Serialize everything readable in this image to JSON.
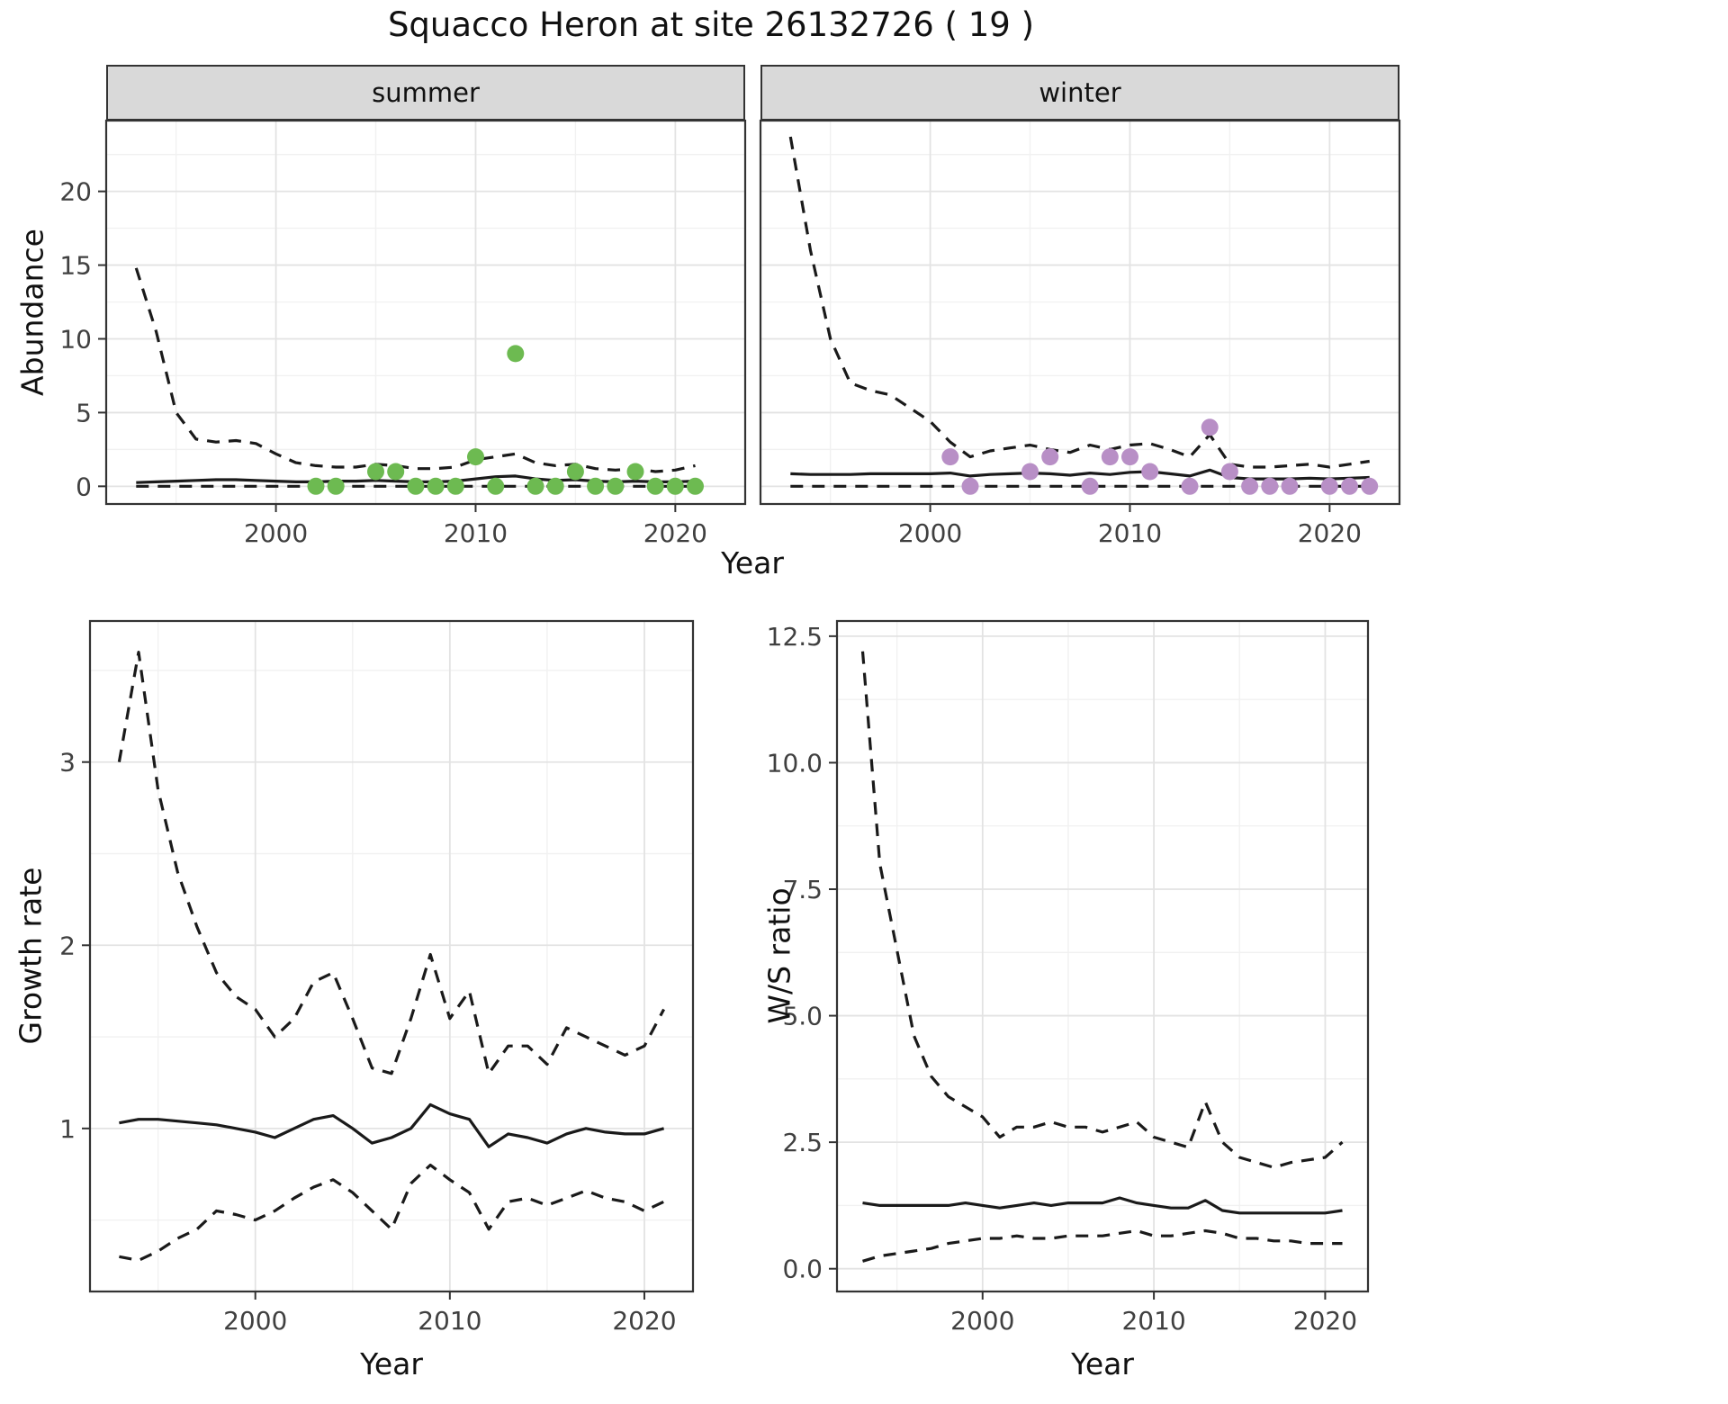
{
  "title": "Squacco Heron at site 26132726 ( 19 )",
  "theme": {
    "grid_major": "#e3e3e3",
    "grid_minor": "#f1f1f1",
    "panel_border": "#333333",
    "strip_bg": "#d9d9d9",
    "line_color": "#1a1a1a",
    "summer_point_color": "#6dba51",
    "winter_point_color": "#b88fc6"
  },
  "chart_data": [
    {
      "id": "abundance",
      "type": "line+scatter",
      "ylabel": "Abundance",
      "xlabel": "Year",
      "xlim": [
        1991.5,
        2023.5
      ],
      "ylim": [
        -1.2,
        24.8
      ],
      "xticks": [
        2000,
        2010,
        2020
      ],
      "xtick_labels": [
        "2000",
        "2010",
        "2020"
      ],
      "yticks": [
        0,
        5,
        10,
        15,
        20
      ],
      "ytick_labels": [
        "0",
        "5",
        "10",
        "15",
        "20"
      ],
      "facets": [
        {
          "label": "summer",
          "point_color": "#6dba51",
          "years": [
            1993,
            1994,
            1995,
            1996,
            1997,
            1998,
            1999,
            2000,
            2001,
            2002,
            2003,
            2004,
            2005,
            2006,
            2007,
            2008,
            2009,
            2010,
            2011,
            2012,
            2013,
            2014,
            2015,
            2016,
            2017,
            2018,
            2019,
            2020,
            2021
          ],
          "upper": [
            14.8,
            10.5,
            5.0,
            3.2,
            3.0,
            3.1,
            2.9,
            2.2,
            1.6,
            1.4,
            1.3,
            1.3,
            1.5,
            1.4,
            1.2,
            1.2,
            1.3,
            1.8,
            2.0,
            2.2,
            1.6,
            1.4,
            1.5,
            1.2,
            1.1,
            1.2,
            1.0,
            1.1,
            1.4
          ],
          "mean": [
            0.25,
            0.3,
            0.35,
            0.4,
            0.45,
            0.45,
            0.4,
            0.35,
            0.3,
            0.3,
            0.35,
            0.35,
            0.4,
            0.35,
            0.3,
            0.3,
            0.35,
            0.5,
            0.65,
            0.7,
            0.5,
            0.4,
            0.45,
            0.35,
            0.3,
            0.35,
            0.3,
            0.3,
            0.35
          ],
          "lower": [
            0,
            0,
            0,
            0,
            0,
            0,
            0,
            0,
            0,
            0,
            0,
            0,
            0,
            0,
            0,
            0,
            0,
            0,
            0,
            0,
            0,
            0,
            0,
            0,
            0,
            0,
            0,
            0,
            0
          ],
          "obs_years": [
            2002,
            2003,
            2005,
            2006,
            2007,
            2008,
            2009,
            2010,
            2011,
            2012,
            2013,
            2014,
            2015,
            2016,
            2017,
            2018,
            2019,
            2020,
            2021
          ],
          "obs_values": [
            0,
            0,
            1,
            1,
            0,
            0,
            0,
            2,
            0,
            9,
            0,
            0,
            1,
            0,
            0,
            1,
            0,
            0,
            0
          ]
        },
        {
          "label": "winter",
          "point_color": "#b88fc6",
          "years": [
            1993,
            1994,
            1995,
            1996,
            1997,
            1998,
            1999,
            2000,
            2001,
            2002,
            2003,
            2004,
            2005,
            2006,
            2007,
            2008,
            2009,
            2010,
            2011,
            2012,
            2013,
            2014,
            2015,
            2016,
            2017,
            2018,
            2019,
            2020,
            2021,
            2022
          ],
          "upper": [
            23.7,
            16.0,
            10.0,
            7.0,
            6.5,
            6.2,
            5.3,
            4.4,
            3.0,
            2.0,
            2.4,
            2.6,
            2.8,
            2.5,
            2.3,
            2.8,
            2.5,
            2.8,
            2.9,
            2.5,
            2.0,
            3.5,
            1.5,
            1.3,
            1.3,
            1.4,
            1.5,
            1.3,
            1.5,
            1.7
          ],
          "mean": [
            0.85,
            0.8,
            0.8,
            0.8,
            0.85,
            0.85,
            0.85,
            0.85,
            0.9,
            0.7,
            0.8,
            0.85,
            0.9,
            0.85,
            0.75,
            0.9,
            0.8,
            0.95,
            1.0,
            0.85,
            0.7,
            1.1,
            0.6,
            0.5,
            0.5,
            0.5,
            0.55,
            0.5,
            0.55,
            0.6
          ],
          "lower": [
            0,
            0,
            0,
            0,
            0,
            0,
            0,
            0,
            0,
            0,
            0,
            0,
            0,
            0,
            0,
            0,
            0,
            0,
            0,
            0,
            0,
            0,
            0,
            0,
            0,
            0,
            0,
            0,
            0,
            0
          ],
          "obs_years": [
            2001,
            2002,
            2005,
            2006,
            2008,
            2009,
            2010,
            2011,
            2013,
            2014,
            2015,
            2016,
            2017,
            2018,
            2020,
            2021,
            2022
          ],
          "obs_values": [
            2,
            0,
            1,
            2,
            0,
            2,
            2,
            1,
            0,
            4,
            1,
            0,
            0,
            0,
            0,
            0,
            0
          ]
        }
      ]
    },
    {
      "id": "growth_rate",
      "type": "line",
      "ylabel": "Growth rate",
      "xlabel": "Year",
      "xlim": [
        1991.5,
        2022.5
      ],
      "ylim": [
        0.11,
        3.77
      ],
      "xticks": [
        2000,
        2010,
        2020
      ],
      "xtick_labels": [
        "2000",
        "2010",
        "2020"
      ],
      "yticks": [
        1,
        2,
        3
      ],
      "ytick_labels": [
        "1",
        "2",
        "3"
      ],
      "years": [
        1993,
        1994,
        1995,
        1996,
        1997,
        1998,
        1999,
        2000,
        2001,
        2002,
        2003,
        2004,
        2005,
        2006,
        2007,
        2008,
        2009,
        2010,
        2011,
        2012,
        2013,
        2014,
        2015,
        2016,
        2017,
        2018,
        2019,
        2020,
        2021
      ],
      "upper": [
        3.0,
        3.6,
        2.85,
        2.4,
        2.1,
        1.85,
        1.72,
        1.65,
        1.5,
        1.6,
        1.8,
        1.85,
        1.6,
        1.33,
        1.3,
        1.6,
        1.95,
        1.6,
        1.75,
        1.3,
        1.45,
        1.45,
        1.35,
        1.55,
        1.5,
        1.45,
        1.4,
        1.45,
        1.65
      ],
      "mean": [
        1.03,
        1.05,
        1.05,
        1.04,
        1.03,
        1.02,
        1.0,
        0.98,
        0.95,
        1.0,
        1.05,
        1.07,
        1.0,
        0.92,
        0.95,
        1.0,
        1.13,
        1.08,
        1.05,
        0.9,
        0.97,
        0.95,
        0.92,
        0.97,
        1.0,
        0.98,
        0.97,
        0.97,
        1.0
      ],
      "lower": [
        0.3,
        0.28,
        0.33,
        0.4,
        0.45,
        0.55,
        0.53,
        0.5,
        0.55,
        0.62,
        0.68,
        0.72,
        0.65,
        0.55,
        0.45,
        0.7,
        0.8,
        0.72,
        0.65,
        0.45,
        0.6,
        0.62,
        0.58,
        0.62,
        0.66,
        0.62,
        0.6,
        0.55,
        0.6
      ]
    },
    {
      "id": "ws_ratio",
      "type": "line",
      "ylabel": "W/S ratio",
      "xlabel": "Year",
      "xlim": [
        1991.5,
        2022.5
      ],
      "ylim": [
        -0.45,
        12.8
      ],
      "xticks": [
        2000,
        2010,
        2020
      ],
      "xtick_labels": [
        "2000",
        "2010",
        "2020"
      ],
      "yticks": [
        0,
        2.5,
        5,
        7.5,
        10,
        12.5
      ],
      "ytick_labels": [
        "0.0",
        "2.5",
        "5.0",
        "7.5",
        "10.0",
        "12.5"
      ],
      "years": [
        1993,
        1994,
        1995,
        1996,
        1997,
        1998,
        1999,
        2000,
        2001,
        2002,
        2003,
        2004,
        2005,
        2006,
        2007,
        2008,
        2009,
        2010,
        2011,
        2012,
        2013,
        2014,
        2015,
        2016,
        2017,
        2018,
        2019,
        2020,
        2021
      ],
      "upper": [
        12.2,
        8.0,
        6.3,
        4.6,
        3.8,
        3.4,
        3.2,
        3.0,
        2.6,
        2.8,
        2.8,
        2.9,
        2.8,
        2.8,
        2.7,
        2.8,
        2.9,
        2.6,
        2.5,
        2.4,
        3.3,
        2.5,
        2.2,
        2.1,
        2.0,
        2.1,
        2.15,
        2.2,
        2.5
      ],
      "mean": [
        1.3,
        1.25,
        1.25,
        1.25,
        1.25,
        1.25,
        1.3,
        1.25,
        1.2,
        1.25,
        1.3,
        1.25,
        1.3,
        1.3,
        1.3,
        1.4,
        1.3,
        1.25,
        1.2,
        1.2,
        1.35,
        1.15,
        1.1,
        1.1,
        1.1,
        1.1,
        1.1,
        1.1,
        1.15
      ],
      "lower": [
        0.15,
        0.25,
        0.3,
        0.35,
        0.4,
        0.5,
        0.55,
        0.6,
        0.6,
        0.65,
        0.6,
        0.6,
        0.65,
        0.65,
        0.65,
        0.7,
        0.75,
        0.65,
        0.65,
        0.7,
        0.75,
        0.7,
        0.6,
        0.6,
        0.55,
        0.55,
        0.5,
        0.5,
        0.5
      ]
    }
  ]
}
